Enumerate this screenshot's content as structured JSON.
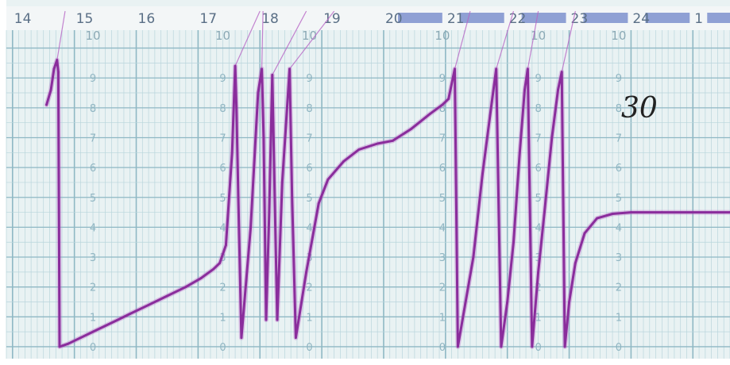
{
  "colors": {
    "paper": "#e9f2f3",
    "grid_minor": "#b9d5dc",
    "grid_major": "#8fb8c4",
    "trace": "#8a2d9c",
    "trace_light": "#b867c6",
    "header": "#f3f6f7",
    "band": "#8fa0d4"
  },
  "hour_labels": [
    "14",
    "15",
    "16",
    "17",
    "18",
    "19",
    "20",
    "21",
    "22",
    "23",
    "24",
    "1"
  ],
  "handwritten_note": "30",
  "chart_data": {
    "type": "line",
    "title": "",
    "xlabel": "",
    "ylabel": "",
    "x_unit": "hour",
    "x_tick_labels": [
      "14",
      "15",
      "16",
      "17",
      "18",
      "19",
      "20",
      "21",
      "22",
      "23",
      "24",
      "1"
    ],
    "y_tick_labels": [
      "0",
      "1",
      "2",
      "3",
      "4",
      "5",
      "6",
      "7",
      "8",
      "9",
      "10"
    ],
    "xlim": [
      13.9,
      25.6
    ],
    "ylim": [
      -0.4,
      10.6
    ],
    "grid": true,
    "series": [
      {
        "points": [
          [
            14.55,
            8.1
          ],
          [
            14.62,
            8.6
          ],
          [
            14.67,
            9.3
          ],
          [
            14.72,
            9.6
          ],
          [
            14.74,
            9.2
          ],
          [
            14.76,
            0.0
          ],
          [
            14.9,
            0.1
          ],
          [
            15.1,
            0.3
          ],
          [
            15.3,
            0.5
          ],
          [
            15.5,
            0.7
          ],
          [
            15.7,
            0.9
          ],
          [
            15.9,
            1.1
          ],
          [
            16.2,
            1.4
          ],
          [
            16.5,
            1.7
          ],
          [
            16.8,
            2.0
          ],
          [
            17.05,
            2.3
          ],
          [
            17.25,
            2.6
          ],
          [
            17.35,
            2.8
          ],
          [
            17.45,
            3.4
          ],
          [
            17.55,
            6.5
          ],
          [
            17.6,
            9.4
          ],
          [
            17.62,
            8.0
          ],
          [
            17.65,
            5.0
          ],
          [
            17.7,
            0.3
          ],
          [
            17.85,
            4.0
          ],
          [
            17.97,
            8.5
          ],
          [
            18.03,
            9.3
          ],
          [
            18.06,
            7.0
          ],
          [
            18.1,
            0.9
          ],
          [
            18.15,
            4.5
          ],
          [
            18.2,
            9.1
          ],
          [
            18.23,
            6.0
          ],
          [
            18.28,
            0.9
          ],
          [
            18.36,
            5.5
          ],
          [
            18.48,
            9.3
          ],
          [
            18.52,
            5.0
          ],
          [
            18.58,
            0.3
          ],
          [
            18.75,
            2.5
          ],
          [
            18.95,
            4.8
          ],
          [
            19.1,
            5.6
          ],
          [
            19.35,
            6.2
          ],
          [
            19.6,
            6.6
          ],
          [
            19.9,
            6.8
          ],
          [
            20.15,
            6.9
          ],
          [
            20.45,
            7.3
          ],
          [
            20.75,
            7.8
          ],
          [
            20.95,
            8.1
          ],
          [
            21.05,
            8.3
          ],
          [
            21.15,
            9.3
          ],
          [
            21.2,
            0.0
          ],
          [
            21.3,
            1.2
          ],
          [
            21.45,
            3.0
          ],
          [
            21.6,
            5.8
          ],
          [
            21.75,
            8.2
          ],
          [
            21.82,
            9.3
          ],
          [
            21.9,
            0.0
          ],
          [
            22.0,
            1.5
          ],
          [
            22.1,
            3.5
          ],
          [
            22.2,
            6.5
          ],
          [
            22.28,
            8.6
          ],
          [
            22.33,
            9.3
          ],
          [
            22.4,
            0.0
          ],
          [
            22.5,
            2.5
          ],
          [
            22.6,
            4.5
          ],
          [
            22.72,
            7.0
          ],
          [
            22.82,
            8.6
          ],
          [
            22.88,
            9.2
          ],
          [
            22.93,
            0.0
          ],
          [
            23.0,
            1.5
          ],
          [
            23.1,
            2.8
          ],
          [
            23.25,
            3.8
          ],
          [
            23.45,
            4.3
          ],
          [
            23.7,
            4.45
          ],
          [
            24.0,
            4.5
          ],
          [
            24.5,
            4.5
          ],
          [
            25.0,
            4.5
          ],
          [
            25.6,
            4.5
          ]
        ]
      }
    ]
  }
}
